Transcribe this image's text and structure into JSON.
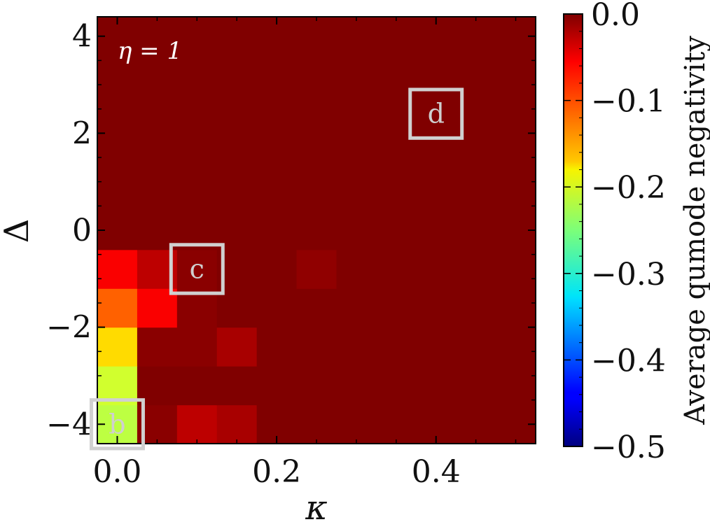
{
  "chart_data": {
    "type": "heatmap",
    "title": "",
    "xlabel": "κ",
    "ylabel": "Δ",
    "annotation": "η = 1",
    "x_centers": [
      0.0,
      0.05,
      0.1,
      0.15,
      0.2,
      0.25,
      0.3,
      0.35,
      0.4,
      0.45,
      0.5
    ],
    "y_centers": [
      -4,
      -3.2,
      -2.4,
      -1.6,
      -0.8,
      0,
      0.8,
      1.6,
      2.4,
      3.2,
      4
    ],
    "xlim": [
      -0.025,
      0.525
    ],
    "ylim": [
      -4.4,
      4.4
    ],
    "x_ticks": [
      0.0,
      0.2,
      0.4
    ],
    "x_tick_labels": [
      "0.0",
      "0.2",
      "0.4"
    ],
    "y_ticks": [
      -4,
      -2,
      0,
      2,
      4
    ],
    "y_tick_labels": [
      "−4",
      "−2",
      "0",
      "2",
      "4"
    ],
    "values": [
      [
        -0.22,
        -0.005,
        -0.03,
        -0.02,
        0,
        0,
        0,
        0,
        0,
        0,
        0
      ],
      [
        -0.21,
        0,
        0,
        0,
        0,
        0,
        0,
        0,
        0,
        0,
        0
      ],
      [
        -0.17,
        -0.005,
        -0.005,
        -0.02,
        0,
        0,
        0,
        0,
        0,
        0,
        0
      ],
      [
        -0.11,
        -0.06,
        -0.005,
        0,
        0,
        0,
        0,
        0,
        0,
        0,
        0
      ],
      [
        -0.06,
        -0.03,
        -0.005,
        0,
        0,
        -0.008,
        0,
        0,
        0,
        0,
        0
      ],
      [
        0,
        0,
        0,
        0,
        0,
        0,
        0,
        0,
        0,
        0,
        0
      ],
      [
        0,
        0,
        0,
        0,
        0,
        0,
        0,
        0,
        0,
        0,
        0
      ],
      [
        0,
        0,
        0,
        0,
        0,
        0,
        0,
        0,
        0,
        0,
        0
      ],
      [
        0,
        0,
        0,
        0,
        0,
        0,
        0,
        0,
        0,
        0,
        0
      ],
      [
        0,
        0,
        0,
        0,
        0,
        0,
        0,
        0,
        0,
        0,
        0
      ],
      [
        0,
        0,
        0,
        0,
        0,
        0,
        0,
        0,
        0,
        0,
        0
      ]
    ],
    "colorbar": {
      "label": "Average qumode negativity",
      "range": [
        -0.5,
        0.0
      ],
      "colormap": "jet",
      "ticks": [
        0.0,
        -0.1,
        -0.2,
        -0.3,
        -0.4,
        -0.5
      ],
      "tick_labels": [
        "0.0",
        "−0.1",
        "−0.2",
        "−0.3",
        "−0.4",
        "−0.5"
      ]
    },
    "markers": [
      {
        "label": "b",
        "kappa": 0.0,
        "delta": -4.0
      },
      {
        "label": "c",
        "kappa": 0.1,
        "delta": -0.8
      },
      {
        "label": "d",
        "kappa": 0.4,
        "delta": 2.4
      }
    ],
    "marker_color": "#d0d0d0",
    "grid": false
  }
}
